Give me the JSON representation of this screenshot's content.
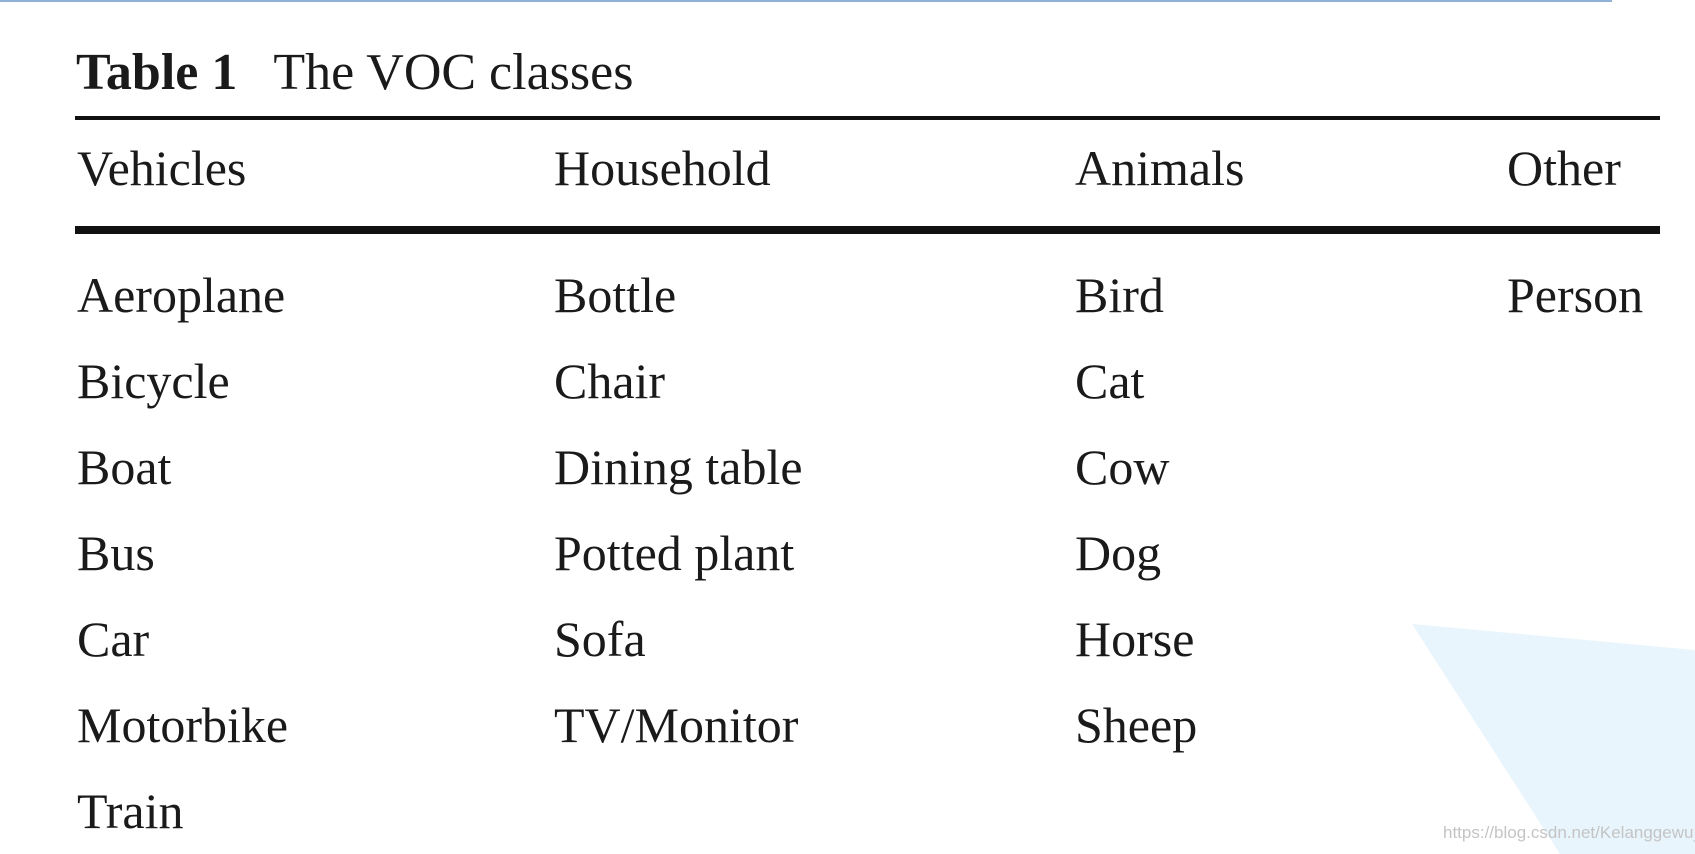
{
  "table": {
    "caption_label": "Table 1",
    "caption_title": "The VOC classes",
    "columns": [
      "Vehicles",
      "Household",
      "Animals",
      "Other"
    ],
    "rows": [
      [
        "Aeroplane",
        "Bottle",
        "Bird",
        "Person"
      ],
      [
        "Bicycle",
        "Chair",
        "Cat",
        ""
      ],
      [
        "Boat",
        "Dining table",
        "Cow",
        ""
      ],
      [
        "Bus",
        "Potted plant",
        "Dog",
        ""
      ],
      [
        "Car",
        "Sofa",
        "Horse",
        ""
      ],
      [
        "Motorbike",
        "TV/Monitor",
        "Sheep",
        ""
      ],
      [
        "Train",
        "",
        "",
        ""
      ]
    ]
  },
  "watermark": "https://blog.csdn.net/Kelanggewu_",
  "colors": {
    "top_rule": "#8fb2d6",
    "corner_shape": "#e9f5fc",
    "text": "#1a1a1a"
  }
}
